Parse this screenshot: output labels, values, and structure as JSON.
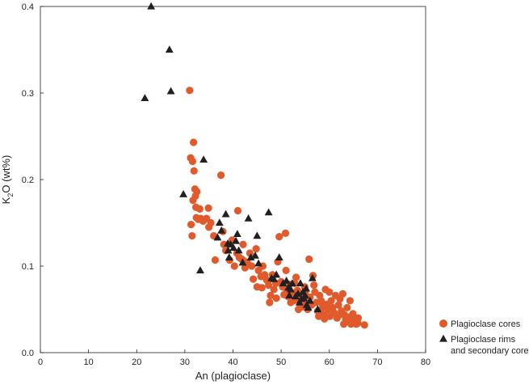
{
  "chart_data": {
    "type": "scatter",
    "title": "",
    "xlabel": "An (plagioclase)",
    "ylabel": "K2O (wt%)",
    "ylabel_parts": {
      "pre": "K",
      "sub": "2",
      "post": "O (wt%)"
    },
    "xlim": [
      0,
      80
    ],
    "ylim": [
      0,
      0.4
    ],
    "x_ticks": [
      0,
      10,
      20,
      30,
      40,
      50,
      60,
      70,
      80
    ],
    "x_tick_labels": [
      "0",
      "10",
      "20",
      "30",
      "40",
      "50",
      "60",
      "70",
      "80"
    ],
    "y_ticks": [
      0,
      0.1,
      0.2,
      0.3,
      0.4
    ],
    "y_tick_labels": [
      "0.0",
      "0.1",
      "0.2",
      "0.3",
      "0.4"
    ],
    "grid": false,
    "legend_position": "bottom-right outside",
    "series": [
      {
        "name": "Plagioclase cores",
        "marker": "circle",
        "color": "#e05a2b",
        "points": [
          [
            31.0,
            0.303
          ],
          [
            31.2,
            0.225
          ],
          [
            31.6,
            0.221
          ],
          [
            31.8,
            0.243
          ],
          [
            31.9,
            0.21
          ],
          [
            31.7,
            0.176
          ],
          [
            32.1,
            0.189
          ],
          [
            32.2,
            0.181
          ],
          [
            32.3,
            0.168
          ],
          [
            32.5,
            0.186
          ],
          [
            32.4,
            0.156
          ],
          [
            31.3,
            0.148
          ],
          [
            31.5,
            0.135
          ],
          [
            32.8,
            0.154
          ],
          [
            33.1,
            0.166
          ],
          [
            33.3,
            0.155
          ],
          [
            33.8,
            0.152
          ],
          [
            34.5,
            0.155
          ],
          [
            35.0,
            0.145
          ],
          [
            34.9,
            0.167
          ],
          [
            35.4,
            0.15
          ],
          [
            36.0,
            0.135
          ],
          [
            36.3,
            0.107
          ],
          [
            37.5,
            0.205
          ],
          [
            37.9,
            0.14
          ],
          [
            38.1,
            0.125
          ],
          [
            38.5,
            0.118
          ],
          [
            39.3,
            0.107
          ],
          [
            39.8,
            0.13
          ],
          [
            40.3,
            0.1
          ],
          [
            40.8,
            0.115
          ],
          [
            41.0,
            0.164
          ],
          [
            41.3,
            0.11
          ],
          [
            41.8,
            0.108
          ],
          [
            42.1,
            0.125
          ],
          [
            42.3,
            0.106
          ],
          [
            42.5,
            0.098
          ],
          [
            43.0,
            0.104
          ],
          [
            43.5,
            0.115
          ],
          [
            43.9,
            0.1
          ],
          [
            44.2,
            0.085
          ],
          [
            44.8,
            0.12
          ],
          [
            45.0,
            0.076
          ],
          [
            45.3,
            0.095
          ],
          [
            45.8,
            0.088
          ],
          [
            46.2,
            0.1
          ],
          [
            46.6,
            0.09
          ],
          [
            47.0,
            0.084
          ],
          [
            47.4,
            0.078
          ],
          [
            47.8,
            0.066
          ],
          [
            48.2,
            0.09
          ],
          [
            48.5,
            0.073
          ],
          [
            48.9,
            0.08
          ],
          [
            49.3,
            0.105
          ],
          [
            49.6,
            0.134
          ],
          [
            50.0,
            0.082
          ],
          [
            50.3,
            0.076
          ],
          [
            50.6,
            0.067
          ],
          [
            50.9,
            0.138
          ],
          [
            51.2,
            0.073
          ],
          [
            51.4,
            0.065
          ],
          [
            51.8,
            0.079
          ],
          [
            52.0,
            0.058
          ],
          [
            52.4,
            0.069
          ],
          [
            52.8,
            0.08
          ],
          [
            53.1,
            0.087
          ],
          [
            53.4,
            0.072
          ],
          [
            53.8,
            0.06
          ],
          [
            54.0,
            0.055
          ],
          [
            54.3,
            0.066
          ],
          [
            54.6,
            0.053
          ],
          [
            54.9,
            0.076
          ],
          [
            55.2,
            0.06
          ],
          [
            55.5,
            0.05
          ],
          [
            55.8,
            0.108
          ],
          [
            56.0,
            0.064
          ],
          [
            56.3,
            0.055
          ],
          [
            56.6,
            0.089
          ],
          [
            57.0,
            0.07
          ],
          [
            57.3,
            0.058
          ],
          [
            57.6,
            0.048
          ],
          [
            58.0,
            0.066
          ],
          [
            58.3,
            0.06
          ],
          [
            58.6,
            0.052
          ],
          [
            58.9,
            0.044
          ],
          [
            59.2,
            0.073
          ],
          [
            59.5,
            0.056
          ],
          [
            59.8,
            0.05
          ],
          [
            60.1,
            0.042
          ],
          [
            60.4,
            0.06
          ],
          [
            60.7,
            0.052
          ],
          [
            61.0,
            0.046
          ],
          [
            61.3,
            0.066
          ],
          [
            61.6,
            0.04
          ],
          [
            61.9,
            0.055
          ],
          [
            62.2,
            0.062
          ],
          [
            62.5,
            0.048
          ],
          [
            62.8,
            0.068
          ],
          [
            63.1,
            0.044
          ],
          [
            63.4,
            0.038
          ],
          [
            63.7,
            0.052
          ],
          [
            64.0,
            0.041
          ],
          [
            64.3,
            0.06
          ],
          [
            64.6,
            0.035
          ],
          [
            64.9,
            0.045
          ],
          [
            65.2,
            0.038
          ],
          [
            65.6,
            0.033
          ],
          [
            66.0,
            0.04
          ],
          [
            63.0,
            0.033
          ],
          [
            64.5,
            0.033
          ],
          [
            59.0,
            0.039
          ],
          [
            60.0,
            0.07
          ],
          [
            56.8,
            0.078
          ],
          [
            55.0,
            0.07
          ],
          [
            53.6,
            0.05
          ],
          [
            52.6,
            0.06
          ],
          [
            51.0,
            0.095
          ],
          [
            49.0,
            0.063
          ],
          [
            47.6,
            0.058
          ],
          [
            46.0,
            0.075
          ],
          [
            67.3,
            0.032
          ],
          [
            65.9,
            0.034
          ],
          [
            62.0,
            0.043
          ],
          [
            58.5,
            0.057
          ],
          [
            57.8,
            0.042
          ]
        ]
      },
      {
        "name": "Plagioclase rims and secondary cores",
        "legend_lines": [
          "Plagioclase rims",
          "and secondary cores"
        ],
        "marker": "triangle",
        "color": "#231f20",
        "points": [
          [
            23.0,
            0.4
          ],
          [
            26.8,
            0.35
          ],
          [
            27.1,
            0.302
          ],
          [
            21.7,
            0.294
          ],
          [
            33.9,
            0.223
          ],
          [
            29.7,
            0.183
          ],
          [
            37.2,
            0.15
          ],
          [
            37.6,
            0.141
          ],
          [
            38.5,
            0.16
          ],
          [
            36.8,
            0.133
          ],
          [
            39.0,
            0.118
          ],
          [
            39.5,
            0.125
          ],
          [
            40.1,
            0.121
          ],
          [
            40.6,
            0.129
          ],
          [
            40.9,
            0.137
          ],
          [
            41.2,
            0.118
          ],
          [
            39.2,
            0.11
          ],
          [
            42.0,
            0.104
          ],
          [
            43.2,
            0.155
          ],
          [
            43.7,
            0.11
          ],
          [
            45.0,
            0.135
          ],
          [
            45.3,
            0.103
          ],
          [
            47.4,
            0.162
          ],
          [
            48.5,
            0.085
          ],
          [
            49.0,
            0.09
          ],
          [
            49.6,
            0.11
          ],
          [
            50.4,
            0.08
          ],
          [
            51.1,
            0.083
          ],
          [
            51.5,
            0.075
          ],
          [
            52.0,
            0.073
          ],
          [
            52.3,
            0.08
          ],
          [
            53.0,
            0.065
          ],
          [
            53.5,
            0.068
          ],
          [
            53.8,
            0.058
          ],
          [
            54.2,
            0.062
          ],
          [
            54.5,
            0.07
          ],
          [
            54.7,
            0.063
          ],
          [
            55.0,
            0.066
          ],
          [
            55.3,
            0.055
          ],
          [
            55.6,
            0.052
          ],
          [
            56.0,
            0.06
          ],
          [
            56.5,
            0.086
          ],
          [
            57.6,
            0.05
          ],
          [
            48.0,
            0.086
          ],
          [
            33.2,
            0.095
          ],
          [
            44.6,
            0.112
          ],
          [
            38.9,
            0.126
          ],
          [
            51.7,
            0.066
          ],
          [
            54.0,
            0.08
          ],
          [
            55.2,
            0.074
          ]
        ]
      }
    ]
  }
}
